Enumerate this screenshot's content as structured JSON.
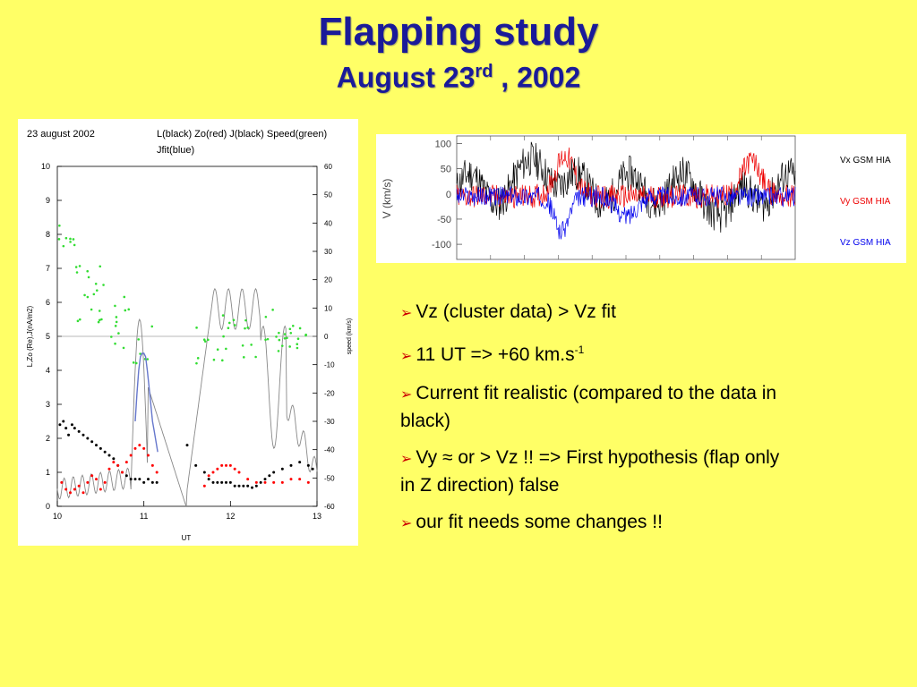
{
  "slide": {
    "title": "Flapping study",
    "subtitle_prefix": "August 23",
    "subtitle_sup": "rd",
    "subtitle_suffix": " , 2002",
    "colors": {
      "background": "#ffff66",
      "title": "#1a1a99",
      "bullet_arrow": "#cc0000"
    }
  },
  "bullets": [
    {
      "text": "Vz (cluster data) > Vz fit"
    },
    {
      "text": "11 UT => +60 km.s",
      "sup": "-1"
    },
    {
      "text": "Current fit realistic (compared to the data in black)"
    },
    {
      "text": "Vy ≈ or > Vz !! => First hypothesis (flap only in Z direction) false"
    },
    {
      "text": "our fit needs some changes !!"
    }
  ],
  "chart_data": [
    {
      "type": "scatter",
      "title": "23 august 2002",
      "header_legend": "L(black) Zo(red) J(black) Speed(green)",
      "header_legend2": "Jfit(blue)",
      "xlabel": "UT",
      "ylabel": "L,Zo (Re),J(nA/m2)",
      "y2label": "speed (km/s)",
      "xlim": [
        10,
        13
      ],
      "ylim": [
        0,
        10
      ],
      "y2lim": [
        -60,
        60
      ],
      "x_ticks": [
        "10",
        "11",
        "12",
        "13"
      ],
      "y_ticks": [
        "0",
        "1",
        "2",
        "3",
        "4",
        "5",
        "6",
        "7",
        "8",
        "9",
        "10"
      ],
      "y2_ticks": [
        "-60",
        "-50",
        "-40",
        "-30",
        "-20",
        "-10",
        "0",
        "10",
        "20",
        "30",
        "40",
        "50",
        "60"
      ],
      "grid": false,
      "reference_line_y": 5,
      "series": [
        {
          "name": "L",
          "color": "#000000",
          "x": [
            10.03,
            10.07,
            10.1,
            10.13,
            10.17,
            10.2,
            10.25,
            10.3,
            10.35,
            10.4,
            10.45,
            10.5,
            10.55,
            10.6,
            10.65,
            10.7,
            10.75,
            10.8,
            10.85,
            10.9,
            10.95,
            11.0,
            11.05,
            11.1,
            11.15,
            11.5,
            11.6,
            11.7,
            11.75,
            11.8,
            11.85,
            11.9,
            11.95,
            12.0,
            12.05,
            12.1,
            12.15,
            12.2,
            12.25,
            12.3,
            12.35,
            12.4,
            12.45,
            12.5,
            12.6,
            12.7,
            12.8,
            12.9,
            12.95
          ],
          "y": [
            2.4,
            2.5,
            2.3,
            2.1,
            2.4,
            2.3,
            2.2,
            2.1,
            2.0,
            1.9,
            1.8,
            1.7,
            1.6,
            1.5,
            1.4,
            1.2,
            1.0,
            0.9,
            0.8,
            0.8,
            0.8,
            0.7,
            0.8,
            0.7,
            0.7,
            1.8,
            1.2,
            1.0,
            0.8,
            0.7,
            0.7,
            0.7,
            0.7,
            0.7,
            0.6,
            0.6,
            0.6,
            0.6,
            0.55,
            0.6,
            0.7,
            0.8,
            0.9,
            1.0,
            1.1,
            1.2,
            1.3,
            1.2,
            1.1
          ]
        },
        {
          "name": "Zo",
          "color": "#ff0000",
          "x": [
            10.05,
            10.1,
            10.15,
            10.2,
            10.25,
            10.3,
            10.35,
            10.4,
            10.45,
            10.5,
            10.55,
            10.6,
            10.65,
            10.7,
            10.75,
            10.8,
            10.85,
            10.9,
            10.95,
            11.0,
            11.05,
            11.1,
            11.15,
            11.7,
            11.75,
            11.8,
            11.85,
            11.9,
            11.95,
            12.0,
            12.05,
            12.1,
            12.2,
            12.3,
            12.4,
            12.5,
            12.6,
            12.7,
            12.8,
            12.9
          ],
          "y": [
            0.7,
            0.5,
            0.4,
            0.5,
            0.6,
            0.4,
            0.7,
            0.9,
            0.8,
            0.5,
            0.7,
            1.1,
            1.3,
            1.2,
            1.0,
            1.3,
            1.5,
            1.7,
            1.8,
            1.7,
            1.5,
            1.2,
            1.0,
            0.6,
            0.9,
            1.0,
            1.1,
            1.2,
            1.2,
            1.2,
            1.1,
            1.0,
            0.8,
            0.7,
            0.7,
            0.7,
            0.7,
            0.8,
            0.8,
            0.7
          ]
        },
        {
          "name": "Jfit",
          "color": "#6677cc",
          "x": [
            10.9,
            10.92,
            10.94,
            10.96,
            10.98,
            11.0,
            11.02,
            11.04,
            11.06,
            11.08,
            11.1,
            11.12,
            11.14,
            11.16
          ],
          "y": [
            2.5,
            3.3,
            4.0,
            4.4,
            4.5,
            4.5,
            4.4,
            4.0,
            3.5,
            3.0,
            2.5,
            2.2,
            1.9,
            1.6
          ]
        }
      ]
    },
    {
      "type": "line",
      "ylabel": "V (km/s)",
      "ylim": [
        -130,
        115
      ],
      "y_ticks": [
        "100",
        "50",
        "0",
        "-50",
        "-100"
      ],
      "series": [
        {
          "name": "Vx  GSM  HIA",
          "color": "#000000"
        },
        {
          "name": "Vy  GSM  HIA",
          "color": "#ee0000"
        },
        {
          "name": "Vz  GSM  HIA",
          "color": "#0000ee"
        }
      ]
    }
  ]
}
